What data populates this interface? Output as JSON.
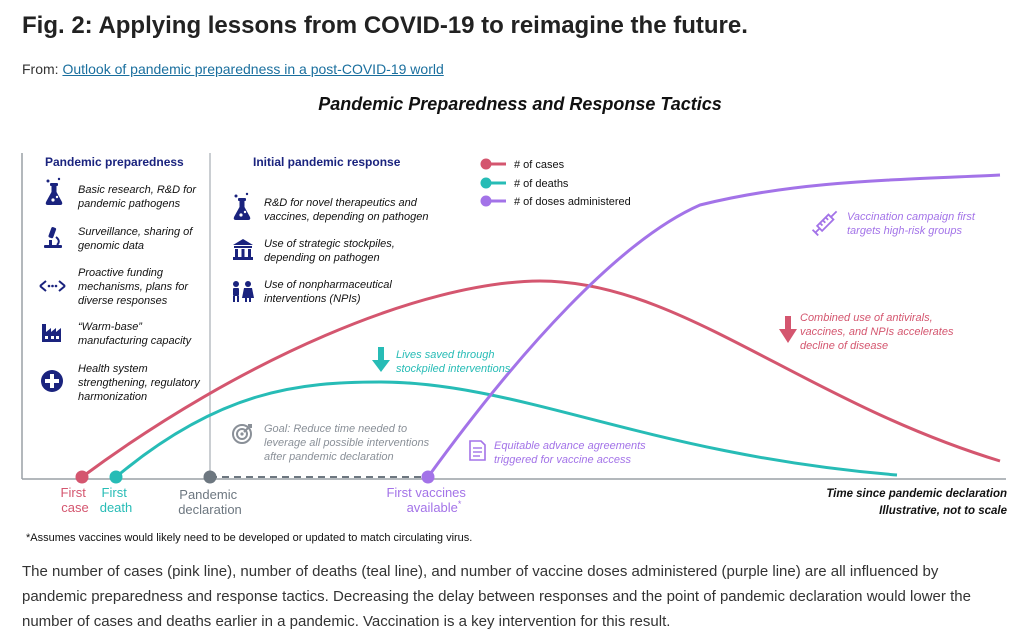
{
  "figure": {
    "title": "Fig. 2: Applying lessons from COVID-19 to reimagine the future.",
    "from_prefix": "From:",
    "source_link": "Outlook of pandemic preparedness in a post-COVID-19 world"
  },
  "chart": {
    "title": "Pandemic Preparedness and Response Tactics",
    "preparedness": {
      "heading": "Pandemic preparedness",
      "items": [
        {
          "icon": "flask-icon",
          "lines": [
            "Basic research, R&D for",
            "pandemic pathogens"
          ]
        },
        {
          "icon": "microscope-icon",
          "lines": [
            "Surveillance, sharing of",
            "genomic data"
          ]
        },
        {
          "icon": "funding-arrows-icon",
          "lines": [
            "Proactive funding",
            "mechanisms, plans for",
            "diverse responses"
          ]
        },
        {
          "icon": "factory-icon",
          "lines": [
            "“Warm-base”",
            "manufacturing capacity"
          ]
        },
        {
          "icon": "health-cross-icon",
          "lines": [
            "Health system",
            "strengthening, regulatory",
            "harmonization"
          ]
        }
      ]
    },
    "response": {
      "heading": "Initial pandemic response",
      "items": [
        {
          "icon": "flask-icon",
          "lines": [
            "R&D for novel therapeutics and",
            "vaccines, depending on pathogen"
          ]
        },
        {
          "icon": "stockpile-building-icon",
          "lines": [
            "Use of strategic stockpiles,",
            "depending on pathogen"
          ]
        },
        {
          "icon": "people-icon",
          "lines": [
            "Use of nonpharmaceutical",
            "interventions (NPIs)"
          ]
        }
      ]
    },
    "legend": [
      {
        "label": "# of cases",
        "color": "#d4566f"
      },
      {
        "label": "# of deaths",
        "color": "#27bcb6"
      },
      {
        "label": "# of doses administered",
        "color": "#a373e8"
      }
    ],
    "annotations": {
      "lives_saved": [
        "Lives saved through",
        "stockpiled interventions"
      ],
      "goal": [
        "Goal: Reduce time needed to",
        "leverage all possible interventions",
        "after pandemic declaration"
      ],
      "equitable": [
        "Equitable advance agreements",
        "triggered for vaccine access"
      ],
      "vaccination": [
        "Vaccination campaign first",
        "targets high-risk groups"
      ],
      "combined": [
        "Combined use of antivirals,",
        "vaccines, and NPIs accelerates",
        "decline of disease"
      ]
    },
    "milestones": {
      "first_case": [
        "First",
        "case"
      ],
      "first_death": [
        "First",
        "death"
      ],
      "declaration": [
        "Pandemic",
        "declaration"
      ],
      "first_vaccines": [
        "First vaccines",
        "available"
      ],
      "vaccines_footnote_mark": "*"
    },
    "axis": {
      "x_label": "Time since pandemic declaration",
      "scale_note": "Illustrative, not to scale"
    },
    "footnote": "*Assumes vaccines would likely need to be developed or updated to match circulating virus.",
    "colors": {
      "cases": "#d4566f",
      "deaths": "#27bcb6",
      "doses": "#a373e8",
      "navy": "#1a237e",
      "grey": "#6d7780"
    }
  },
  "caption": "The number of cases (pink line), number of deaths (teal line), and number of vaccine doses administered (purple line) are all influenced by pandemic preparedness and response tactics. Decreasing the delay between responses and the point of pandemic declaration would lower the number of cases and deaths earlier in a pandemic. Vaccination is a key intervention for this result."
}
